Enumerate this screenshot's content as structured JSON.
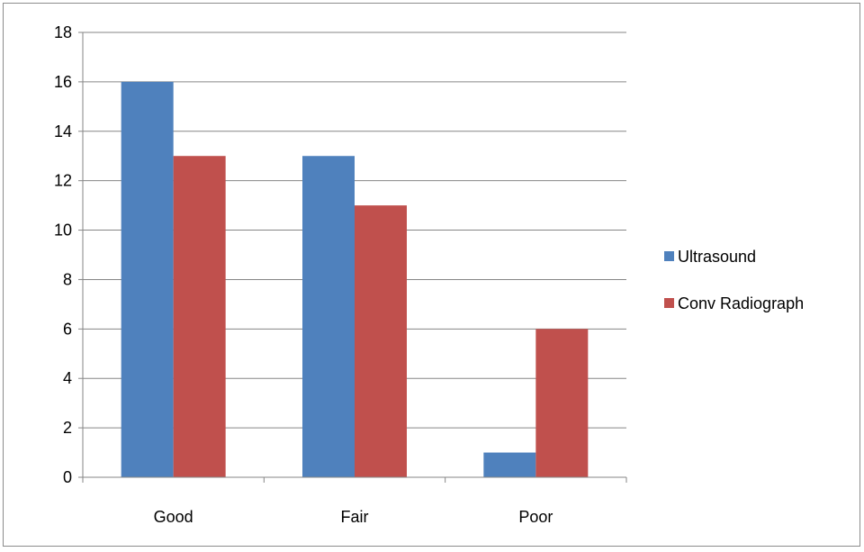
{
  "chart_data": {
    "type": "bar",
    "categories": [
      "Good",
      "Fair",
      "Poor"
    ],
    "series": [
      {
        "name": "Ultrasound",
        "values": [
          16,
          13,
          1
        ],
        "color": "#4f81bd"
      },
      {
        "name": "Conv Radiograph",
        "values": [
          13,
          11,
          6
        ],
        "color": "#c0504d"
      }
    ],
    "ylim": [
      0,
      18
    ],
    "yticks": [
      0,
      2,
      4,
      6,
      8,
      10,
      12,
      14,
      16,
      18
    ],
    "grid": true,
    "legend_position": "right",
    "title": "",
    "xlabel": "",
    "ylabel": ""
  }
}
